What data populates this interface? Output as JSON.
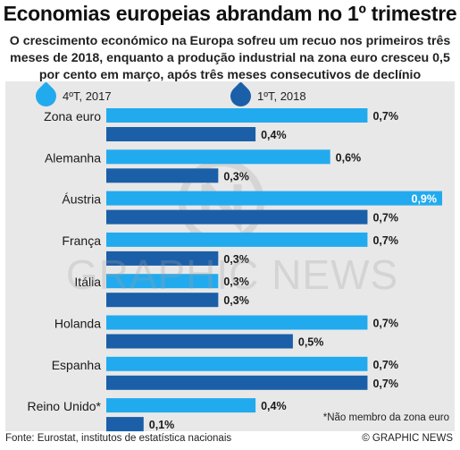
{
  "title": "Economias europeias abrandam no 1º trimestre",
  "subtitle": "O crescimento económico na Europa sofreu um recuo nos primeiros três meses de 2018, enquanto a produção industrial na zona euro cresceu 0,5 por cento em março, após três meses consecutivos de declínio",
  "footnote": "*Não membro da zona euro",
  "source": "Fonte: Eurostat, institutos de estatística nacionais",
  "credit": "© GRAPHIC NEWS",
  "watermark": "GRAPHIC NEWS",
  "colors": {
    "series_2017": "#22aaee",
    "series_2018": "#1a5fa8",
    "panel": "#e8e8e8"
  },
  "chart_data": {
    "type": "bar",
    "orientation": "horizontal",
    "categories": [
      "Zona euro",
      "Alemanha",
      "Áustria",
      "França",
      "Itália",
      "Holanda",
      "Espanha",
      "Reino Unido*"
    ],
    "series": [
      {
        "name": "4ºT, 2017",
        "values": [
          0.7,
          0.6,
          0.9,
          0.7,
          0.3,
          0.7,
          0.7,
          0.4
        ],
        "labels": [
          "0,7%",
          "0,6%",
          "0,9%",
          "0,7%",
          "0,3%",
          "0,7%",
          "0,7%",
          "0,4%"
        ]
      },
      {
        "name": "1ºT, 2018",
        "values": [
          0.4,
          0.3,
          0.7,
          0.3,
          0.3,
          0.5,
          0.7,
          0.1
        ],
        "labels": [
          "0,4%",
          "0,3%",
          "0,7%",
          "0,3%",
          "0,3%",
          "0,5%",
          "0,7%",
          "0,1%"
        ]
      }
    ],
    "xlim": [
      0,
      0.9
    ],
    "legend": "top",
    "grid": false
  }
}
